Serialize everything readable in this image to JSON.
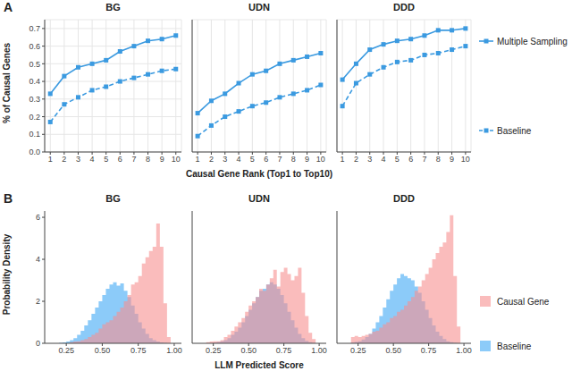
{
  "chart_data": [
    {
      "type": "line",
      "title": "BG",
      "annotations": [
        "A"
      ],
      "y_label": "% of Causal Genes",
      "grid": true,
      "x": [
        1,
        2,
        3,
        4,
        5,
        6,
        7,
        8,
        9,
        10
      ],
      "xlim": [
        0.6,
        10.4
      ],
      "xticks": [
        1,
        2,
        3,
        4,
        5,
        6,
        7,
        8,
        9,
        10
      ],
      "ylim": [
        0,
        0.75
      ],
      "yticks": [
        {
          "value": 0,
          "label": "0.0"
        },
        0.1,
        0.2,
        0.3,
        0.4,
        0.5,
        0.6,
        0.7
      ],
      "series": [
        {
          "name": "Multiple Sampling",
          "color": "#3b9ae0",
          "marker": "square",
          "line_style": "solid",
          "values": [
            0.33,
            0.43,
            0.48,
            0.5,
            0.52,
            0.57,
            0.6,
            0.63,
            0.64,
            0.66
          ]
        },
        {
          "name": "Baseline",
          "color": "#3b9ae0",
          "marker": "square",
          "line_style": "dashed",
          "values": [
            0.17,
            0.27,
            0.31,
            0.35,
            0.37,
            0.4,
            0.42,
            0.44,
            0.46,
            0.47
          ]
        }
      ]
    },
    {
      "type": "line",
      "title": "UDN",
      "x_label": "Causal Gene Rank (Top1 to Top10)",
      "grid": true,
      "tick_labels": "x",
      "x": [
        1,
        2,
        3,
        4,
        5,
        6,
        7,
        8,
        9,
        10
      ],
      "xlim": [
        0.6,
        10.4
      ],
      "xticks": [
        1,
        2,
        3,
        4,
        5,
        6,
        7,
        8,
        9,
        10
      ],
      "ylim": [
        0,
        0.75
      ],
      "yticks": [
        {
          "value": 0,
          "label": "0.0"
        },
        0.1,
        0.2,
        0.3,
        0.4,
        0.5,
        0.6,
        0.7
      ],
      "series": [
        {
          "name": "Multiple Sampling",
          "color": "#3b9ae0",
          "marker": "square",
          "line_style": "solid",
          "values": [
            0.22,
            0.29,
            0.33,
            0.39,
            0.44,
            0.46,
            0.5,
            0.52,
            0.54,
            0.56
          ]
        },
        {
          "name": "Baseline",
          "color": "#3b9ae0",
          "marker": "square",
          "line_style": "dashed",
          "values": [
            0.09,
            0.15,
            0.2,
            0.23,
            0.26,
            0.28,
            0.31,
            0.33,
            0.35,
            0.38
          ]
        }
      ]
    },
    {
      "type": "line",
      "title": "DDD",
      "grid": true,
      "tick_labels": "x",
      "x": [
        1,
        2,
        3,
        4,
        5,
        6,
        7,
        8,
        9,
        10
      ],
      "xlim": [
        0.6,
        10.4
      ],
      "xticks": [
        1,
        2,
        3,
        4,
        5,
        6,
        7,
        8,
        9,
        10
      ],
      "ylim": [
        0,
        0.75
      ],
      "yticks": [
        {
          "value": 0,
          "label": "0.0"
        },
        0.1,
        0.2,
        0.3,
        0.4,
        0.5,
        0.6,
        0.7
      ],
      "series": [
        {
          "name": "Multiple Sampling",
          "color": "#3b9ae0",
          "marker": "square",
          "line_style": "solid",
          "values": [
            0.41,
            0.5,
            0.58,
            0.61,
            0.63,
            0.64,
            0.66,
            0.69,
            0.69,
            0.7
          ]
        },
        {
          "name": "Baseline",
          "color": "#3b9ae0",
          "marker": "square",
          "line_style": "dashed",
          "values": [
            0.26,
            0.39,
            0.44,
            0.48,
            0.51,
            0.52,
            0.55,
            0.56,
            0.58,
            0.6
          ]
        }
      ]
    },
    {
      "type": "histogram",
      "title": "BG",
      "annotations": [
        "B"
      ],
      "y_label": "Probability Density",
      "grid": false,
      "bins": [
        0.1,
        0.125,
        0.15,
        0.175,
        0.2,
        0.225,
        0.25,
        0.275,
        0.3,
        0.325,
        0.35,
        0.375,
        0.4,
        0.425,
        0.45,
        0.475,
        0.5,
        0.525,
        0.55,
        0.575,
        0.6,
        0.625,
        0.65,
        0.675,
        0.7,
        0.725,
        0.75,
        0.775,
        0.8,
        0.825,
        0.85,
        0.875,
        0.9,
        0.925,
        0.95,
        0.975,
        1.0
      ],
      "xlim": [
        0.1,
        1.05
      ],
      "xticks": [
        0.25,
        {
          "value": 0.5,
          "label": "0.50"
        },
        0.75,
        {
          "value": 1,
          "label": "1.00"
        }
      ],
      "ylim": [
        0,
        6.3
      ],
      "yticks": [
        0,
        2,
        4,
        6
      ],
      "series": [
        {
          "name": "Causal Gene",
          "color": "#f78f8f",
          "values": [
            0,
            0,
            0,
            0,
            0,
            0,
            0,
            0.05,
            0.08,
            0.1,
            0.15,
            0.2,
            0.3,
            0.4,
            0.5,
            0.7,
            0.9,
            1.0,
            1.1,
            1.3,
            1.5,
            1.7,
            2.0,
            2.3,
            2.8,
            2.9,
            3.2,
            3.8,
            4.1,
            4.4,
            4.6,
            5.7,
            4.6,
            1.9,
            0.3,
            0
          ]
        },
        {
          "name": "Baseline",
          "color": "#3fa9f5",
          "values": [
            0,
            0,
            0,
            0,
            0.02,
            0.04,
            0.08,
            0.15,
            0.25,
            0.4,
            0.6,
            0.85,
            1.1,
            1.4,
            1.7,
            2.0,
            2.3,
            2.6,
            2.8,
            2.9,
            2.75,
            2.85,
            2.5,
            2.2,
            1.8,
            1.4,
            1.0,
            0.7,
            0.45,
            0.25,
            0.15,
            0.08,
            0.04,
            0.02,
            0,
            0
          ]
        }
      ]
    },
    {
      "type": "histogram",
      "title": "UDN",
      "x_label": "LLM Predicted Score",
      "grid": false,
      "tick_labels": "x",
      "bins": [
        0.1,
        0.125,
        0.15,
        0.175,
        0.2,
        0.225,
        0.25,
        0.275,
        0.3,
        0.325,
        0.35,
        0.375,
        0.4,
        0.425,
        0.45,
        0.475,
        0.5,
        0.525,
        0.55,
        0.575,
        0.6,
        0.625,
        0.65,
        0.675,
        0.7,
        0.725,
        0.75,
        0.775,
        0.8,
        0.825,
        0.85,
        0.875,
        0.9,
        0.925,
        0.95,
        0.975,
        1.0
      ],
      "xlim": [
        0.1,
        1.05
      ],
      "xticks": [
        0.25,
        {
          "value": 0.5,
          "label": "0.50"
        },
        0.75,
        {
          "value": 1,
          "label": "1.00"
        }
      ],
      "ylim": [
        0,
        6.3
      ],
      "yticks": [
        0,
        2,
        4,
        6
      ],
      "series": [
        {
          "name": "Causal Gene",
          "color": "#f78f8f",
          "values": [
            0,
            0,
            0,
            0,
            0.05,
            0.08,
            0.1,
            0.1,
            0.15,
            0.3,
            0.4,
            0.6,
            0.8,
            1.0,
            1.2,
            1.5,
            1.8,
            2.0,
            2.2,
            2.6,
            2.5,
            2.8,
            3.1,
            3.5,
            2.7,
            3.4,
            3.6,
            3.3,
            3.0,
            3.2,
            3.6,
            2.4,
            1.3,
            0.5,
            0.2,
            0
          ]
        },
        {
          "name": "Baseline",
          "color": "#3fa9f5",
          "values": [
            0,
            0,
            0,
            0,
            0,
            0,
            0.03,
            0.06,
            0.1,
            0.15,
            0.25,
            0.4,
            0.55,
            0.75,
            1.0,
            1.3,
            1.6,
            1.9,
            2.2,
            2.5,
            2.6,
            2.8,
            2.9,
            2.8,
            2.6,
            2.3,
            1.9,
            1.5,
            1.1,
            0.75,
            0.45,
            0.25,
            0.12,
            0.05,
            0.02,
            0
          ]
        }
      ]
    },
    {
      "type": "histogram",
      "title": "DDD",
      "grid": false,
      "tick_labels": "x",
      "bins": [
        0.1,
        0.125,
        0.15,
        0.175,
        0.2,
        0.225,
        0.25,
        0.275,
        0.3,
        0.325,
        0.35,
        0.375,
        0.4,
        0.425,
        0.45,
        0.475,
        0.5,
        0.525,
        0.55,
        0.575,
        0.6,
        0.625,
        0.65,
        0.675,
        0.7,
        0.725,
        0.75,
        0.775,
        0.8,
        0.825,
        0.85,
        0.875,
        0.9,
        0.925,
        0.95,
        0.975,
        1.0
      ],
      "xlim": [
        0.1,
        1.05
      ],
      "xticks": [
        0.25,
        {
          "value": 0.5,
          "label": "0.50"
        },
        0.75,
        {
          "value": 1,
          "label": "1.00"
        }
      ],
      "ylim": [
        0,
        6.3
      ],
      "yticks": [
        0,
        2,
        4,
        6
      ],
      "series": [
        {
          "name": "Causal Gene",
          "color": "#f78f8f",
          "values": [
            0,
            0,
            0,
            0,
            0.3,
            0.35,
            0.3,
            0.35,
            0.4,
            0.45,
            0.55,
            0.6,
            0.75,
            0.9,
            1.0,
            1.2,
            1.3,
            1.5,
            1.6,
            1.8,
            2.0,
            2.2,
            2.5,
            2.7,
            3.0,
            3.3,
            3.6,
            4.0,
            4.3,
            4.6,
            4.8,
            5.3,
            6.1,
            3.2,
            0.8,
            0
          ]
        },
        {
          "name": "Baseline",
          "color": "#3fa9f5",
          "values": [
            0,
            0,
            0,
            0,
            0.03,
            0.06,
            0.1,
            0.18,
            0.3,
            0.45,
            0.7,
            1.0,
            1.3,
            1.7,
            2.1,
            2.5,
            2.8,
            3.1,
            3.3,
            3.2,
            3.1,
            3.0,
            2.7,
            2.4,
            2.0,
            1.6,
            1.2,
            0.85,
            0.55,
            0.35,
            0.2,
            0.1,
            0.05,
            0.02,
            0,
            0
          ]
        }
      ]
    }
  ]
}
